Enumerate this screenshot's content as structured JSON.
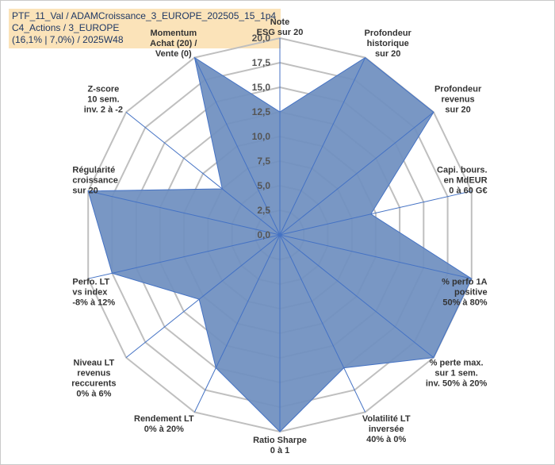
{
  "header": {
    "line1": "PTF_11_Val / ADAMCroissance_3_EUROPE_202505_15_1p4",
    "line2": "C4_Actions / 3_EUROPE",
    "line3": "(16,1% | 7,0%) / 2025W48"
  },
  "colors": {
    "fill": "#6f8fbf",
    "stroke": "#4472c4",
    "grid": "#bfbfbf",
    "spoke": "#4472c4",
    "title_bg": "#fbe3b9"
  },
  "chart_data": {
    "type": "radar",
    "title": "",
    "rlim": [
      0,
      20
    ],
    "grid": true,
    "tick_labels": [
      "0,0",
      "2,5",
      "5,0",
      "7,5",
      "10,0",
      "12,5",
      "15,0",
      "17,5",
      "20,0"
    ],
    "categories": [
      {
        "lines": [
          "Note",
          "ESG sur 20"
        ]
      },
      {
        "lines": [
          "Profondeur",
          "historique",
          "sur 20"
        ]
      },
      {
        "lines": [
          "Profondeur",
          "revenus",
          "sur 20"
        ]
      },
      {
        "lines": [
          "Capi. bours.",
          "en MdEUR",
          "0 à 60 G€"
        ]
      },
      {
        "lines": [
          "% perfo 1A",
          "positive",
          "50% à 80%"
        ]
      },
      {
        "lines": [
          "% perte max.",
          "sur 1 sem.",
          "inv. 50% à 20%"
        ]
      },
      {
        "lines": [
          "Volatilité LT",
          "inversée",
          "40% à 0%"
        ]
      },
      {
        "lines": [
          "Ratio Sharpe",
          "0 à 1"
        ]
      },
      {
        "lines": [
          "Rendement LT",
          "0% à 20%"
        ]
      },
      {
        "lines": [
          "Niveau LT",
          "revenus",
          "reccurents",
          "0% à 6%"
        ]
      },
      {
        "lines": [
          "Perfo. LT",
          "vs index",
          "-8% à 12%"
        ]
      },
      {
        "lines": [
          "Régularité",
          "croissance",
          "sur 20"
        ]
      },
      {
        "lines": [
          "Z-score",
          "10 sem.",
          "inv. 2 à -2"
        ]
      },
      {
        "lines": [
          "Momentum",
          "Achat (20) /",
          "Vente (0)"
        ]
      }
    ],
    "series": [
      {
        "values": [
          12.5,
          20.0,
          20.0,
          9.5,
          20.0,
          20.0,
          15.0,
          20.0,
          15.0,
          10.5,
          17.5,
          20.0,
          7.5,
          20.0
        ]
      }
    ]
  }
}
